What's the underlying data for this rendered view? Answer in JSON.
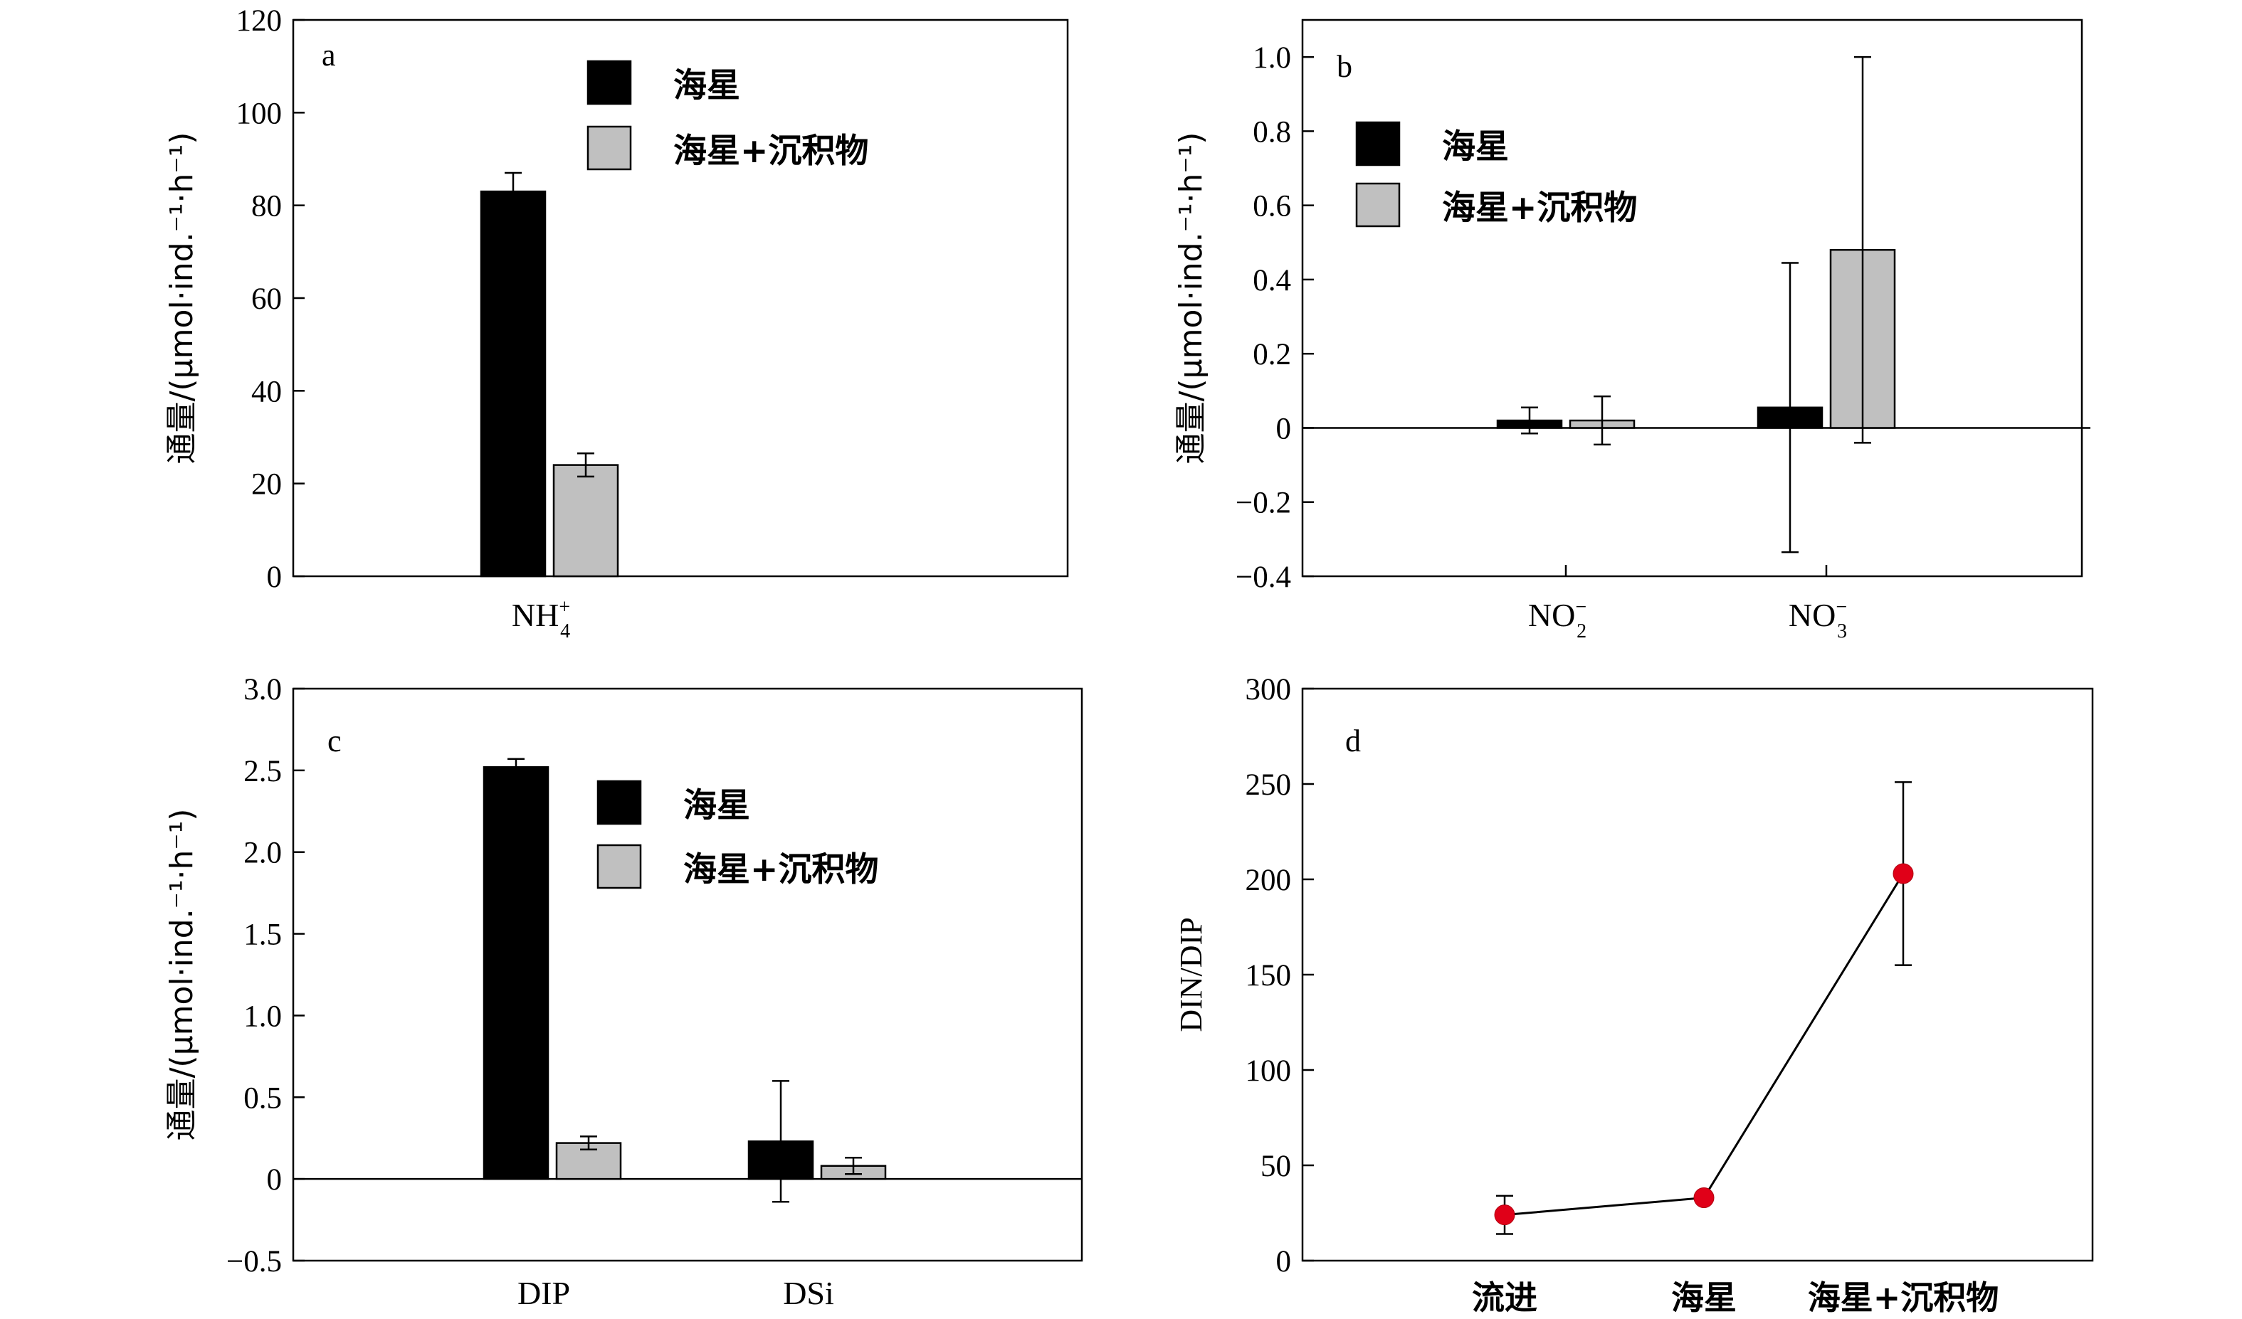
{
  "colors": {
    "black_series": "#000000",
    "gray_series": "#c0c0c0",
    "marker": "#e00018",
    "line": "#000000"
  },
  "chart_data": [
    {
      "panel": "a",
      "type": "bar",
      "ylabel": "通量/(µmol·ind.⁻¹·h⁻¹)",
      "ylim": [
        0,
        120
      ],
      "yticks": [
        0,
        20,
        40,
        60,
        80,
        100,
        120
      ],
      "categories": [
        {
          "base": "NH",
          "sub": "4",
          "sup": "+"
        }
      ],
      "series": [
        {
          "name": "海星",
          "color": "#000000",
          "values": [
            83
          ],
          "errors": [
            4
          ]
        },
        {
          "name": "海星+沉积物",
          "color": "#c0c0c0",
          "values": [
            24
          ],
          "errors": [
            2.5
          ]
        }
      ],
      "legend": "top-center"
    },
    {
      "panel": "b",
      "type": "bar",
      "ylabel": "通量/(µmol·ind.⁻¹·h⁻¹)",
      "ylim": [
        -0.4,
        1.1
      ],
      "yticks": [
        "−0.4",
        "−0.2",
        "0",
        "0.2",
        "0.4",
        "0.6",
        "0.8",
        "1.0"
      ],
      "categories": [
        {
          "base": "NO",
          "sub": "2",
          "sup": "−"
        },
        {
          "base": "NO",
          "sub": "3",
          "sup": "−"
        }
      ],
      "series": [
        {
          "name": "海星",
          "color": "#000000",
          "values": [
            0.02,
            0.055
          ],
          "errors": [
            0.035,
            0.39
          ]
        },
        {
          "name": "海星+沉积物",
          "color": "#c0c0c0",
          "values": [
            0.02,
            0.48
          ],
          "errors": [
            0.065,
            0.52
          ]
        }
      ],
      "legend": "top-left"
    },
    {
      "panel": "c",
      "type": "bar",
      "ylabel": "通量/(µmol·ind.⁻¹·h⁻¹)",
      "ylim": [
        -0.5,
        3.0
      ],
      "yticks": [
        "−0.5",
        "0",
        "0.5",
        "1.0",
        "1.5",
        "2.0",
        "2.5",
        "3.0"
      ],
      "categories": [
        {
          "base": "DIP"
        },
        {
          "base": "DSi"
        }
      ],
      "series": [
        {
          "name": "海星",
          "color": "#000000",
          "values": [
            2.52,
            0.23
          ],
          "errors": [
            0.05,
            0.37
          ]
        },
        {
          "name": "海星+沉积物",
          "color": "#c0c0c0",
          "values": [
            0.22,
            0.08
          ],
          "errors": [
            0.04,
            0.05
          ]
        }
      ],
      "legend": "top-center"
    },
    {
      "panel": "d",
      "type": "line",
      "ylabel": "DIN/DIP",
      "ylim": [
        0,
        300
      ],
      "yticks": [
        0,
        50,
        100,
        150,
        200,
        250,
        300
      ],
      "categories": [
        "流进",
        "海星",
        "海星+沉积物"
      ],
      "series": [
        {
          "values": [
            24,
            33,
            203
          ],
          "errors": [
            10,
            0,
            48
          ],
          "marker_color": "#e00018"
        }
      ]
    }
  ]
}
